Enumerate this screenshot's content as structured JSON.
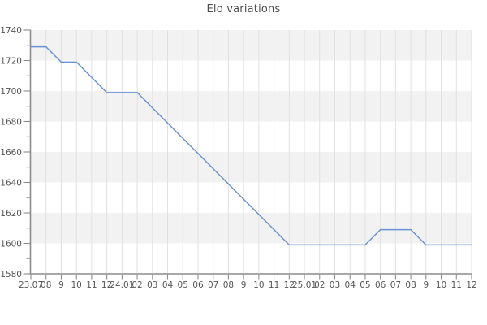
{
  "chart_data": {
    "type": "line",
    "title": "Elo variations",
    "x_tick_labels": [
      "23.07",
      "08",
      "9",
      "10",
      "11",
      "12",
      "24.01",
      "02",
      "03",
      "04",
      "05",
      "06",
      "07",
      "08",
      "9",
      "10",
      "11",
      "12",
      "25.01",
      "02",
      "03",
      "04",
      "05",
      "06",
      "07",
      "08",
      "9",
      "10",
      "11",
      "12"
    ],
    "y_tick_labels": [
      "1740",
      "1720",
      "1700",
      "1680",
      "1660",
      "1640",
      "1620",
      "1600",
      "1580"
    ],
    "ylim": [
      1580,
      1740
    ],
    "y_major_step": 20,
    "y_minor_step": 10,
    "series": [
      {
        "name": "Elo",
        "values": [
          1729,
          1729,
          1719,
          1719,
          1709,
          1699,
          1699,
          1699,
          1689,
          1679,
          1669,
          1659,
          1649,
          1639,
          1629,
          1619,
          1609,
          1599,
          1599,
          1599,
          1599,
          1599,
          1599,
          1609,
          1609,
          1609,
          1599,
          1599,
          1599,
          1599
        ]
      }
    ],
    "grid": "vertical-only",
    "background_bands": "alternating horizontal stripes every 20 units, gray at top band",
    "legend_position": "none",
    "colors": {
      "line": "#6a92d4",
      "band": "#f2f2f2",
      "grid": "#e1e1e1",
      "axis": "#8c8c8c",
      "tick": "#999999",
      "tick_label": "#555555",
      "title": "#4d4d4d"
    }
  }
}
